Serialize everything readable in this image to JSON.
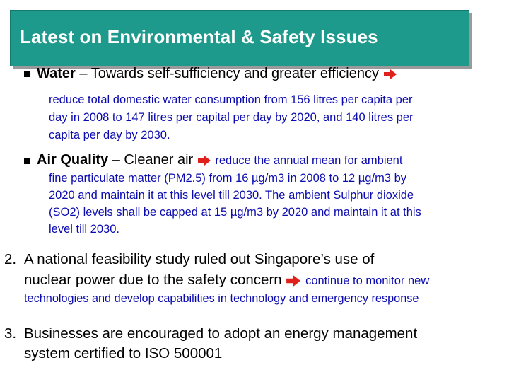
{
  "title": "Latest on Environmental & Safety Issues",
  "bullets": [
    {
      "heading_bold": "Water",
      "heading_rest": " – Towards self-sufficiency and greater efficiency",
      "detail_lines": [
        "reduce total domestic water consumption from 156 litres per capita per",
        "day in 2008 to 147 litres per capital per day by 2020, and 140 litres per",
        "capita per day by 2030."
      ]
    },
    {
      "heading_bold": "Air Quality",
      "heading_rest": " – Cleaner air",
      "inline_detail": "reduce the annual mean for ambient",
      "detail_lines": [
        "fine particulate matter (PM2.5) from 16 µg/m3 in 2008 to 12 µg/m3 by",
        "2020 and maintain it at this level till 2030.  The ambient Sulphur dioxide",
        "(SO2) levels shall be capped at 15 µg/m3 by 2020 and maintain it at this",
        "level till 2030."
      ]
    }
  ],
  "numbered": [
    {
      "label": "2.",
      "lines": [
        "A national feasibility study ruled out Singapore’s use of",
        "nuclear power due to the safety concern"
      ],
      "inline_detail": "continue to monitor new",
      "detail_line": "technologies and develop capabilities in technology and emergency response"
    },
    {
      "label": "3.",
      "lines": [
        "Businesses are encouraged to adopt an energy  management",
        "system certified to ISO 500001"
      ]
    }
  ],
  "colors": {
    "title_bar": "#1e9a8c",
    "detail_text": "#0b0bb0",
    "arrow": "#e0201a"
  },
  "icons": {
    "arrow": "right-arrow-icon",
    "bullet": "square-bullet-icon"
  }
}
